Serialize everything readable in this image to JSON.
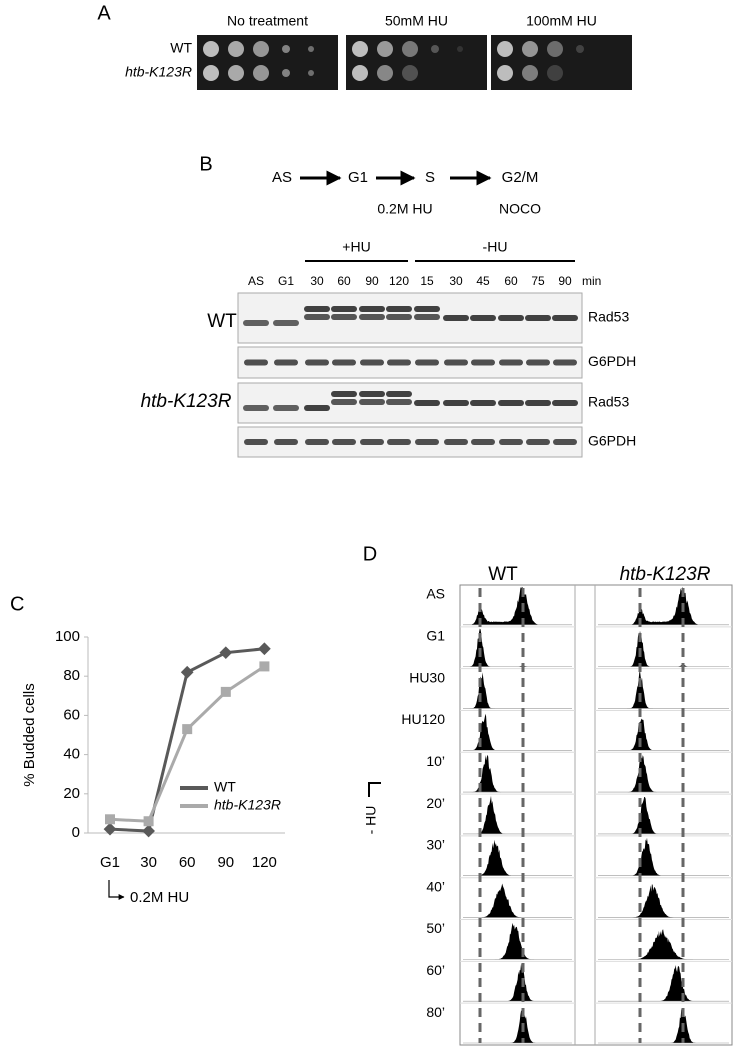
{
  "panel_a": {
    "label": "A",
    "columns": [
      "No treatment",
      "50mM HU",
      "100mM HU"
    ],
    "rows": [
      "WT",
      "htb-K123R"
    ]
  },
  "panel_b": {
    "label": "B",
    "schematic": [
      "AS",
      "G1",
      "S",
      "G2/M"
    ],
    "treatments": [
      "0.2M HU",
      "NOCO"
    ],
    "groups": [
      "+HU",
      "-HU"
    ],
    "lanes": [
      "AS",
      "G1",
      "30",
      "60",
      "90",
      "120",
      "15",
      "30",
      "45",
      "60",
      "75",
      "90"
    ],
    "unit": "min",
    "strains": [
      "WT",
      "htb-K123R"
    ],
    "blots": [
      "Rad53",
      "G6PDH",
      "Rad53",
      "G6PDH"
    ]
  },
  "chart_data": {
    "label": "C",
    "type": "line",
    "categories": [
      "G1",
      "30",
      "60",
      "90",
      "120"
    ],
    "series": [
      {
        "name": "WT",
        "color": "#595959",
        "marker": "diamond",
        "values": [
          2,
          1,
          82,
          92,
          94
        ]
      },
      {
        "name": "htb-K123R",
        "color": "#aaaaaa",
        "marker": "square",
        "values": [
          7,
          6,
          53,
          72,
          85
        ]
      }
    ],
    "ylim": [
      0,
      100
    ],
    "yticks": [
      0,
      20,
      40,
      60,
      80,
      100
    ],
    "y_label": "% Budded cells",
    "annotation": "0.2M HU"
  },
  "panel_d": {
    "label": "D",
    "columns": [
      "WT",
      "htb-K123R"
    ],
    "rows": [
      "AS",
      "G1",
      "HU30",
      "HU120",
      "10’",
      "20’",
      "30’",
      "40’",
      "50’",
      "60’",
      "80’"
    ],
    "annotation": "- HU"
  }
}
